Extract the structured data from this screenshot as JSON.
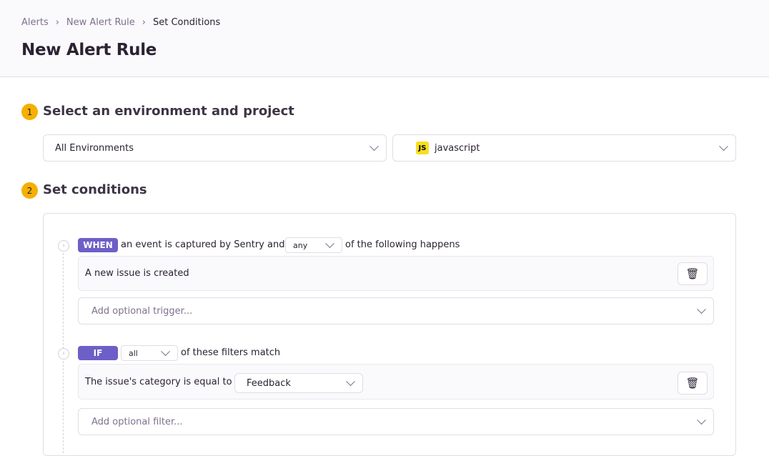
{
  "breadcrumb": [
    "Alerts",
    "New Alert Rule",
    "Set Conditions"
  ],
  "page_title": "New Alert Rule",
  "step1": {
    "number": "1",
    "title": "Select an environment and project",
    "environment": "All Environments",
    "project": "javascript",
    "project_icon": "JS"
  },
  "step2": {
    "number": "2",
    "title": "Set conditions",
    "when": {
      "badge": "WHEN",
      "text_before": "an event is captured by Sentry and",
      "match": "any",
      "text_after": "of the following happens",
      "conditions": [
        "A new issue is created"
      ],
      "add_placeholder": "Add optional trigger..."
    },
    "if": {
      "badge": "IF",
      "match": "all",
      "text_after": "of these filters match",
      "filter_label": "The issue's category is equal to",
      "filter_value": "Feedback",
      "add_placeholder": "Add optional filter..."
    }
  },
  "colors": {
    "accent": "#6c5fc7",
    "step_badge": "#f5b000",
    "js_icon": "#f7df1e"
  }
}
